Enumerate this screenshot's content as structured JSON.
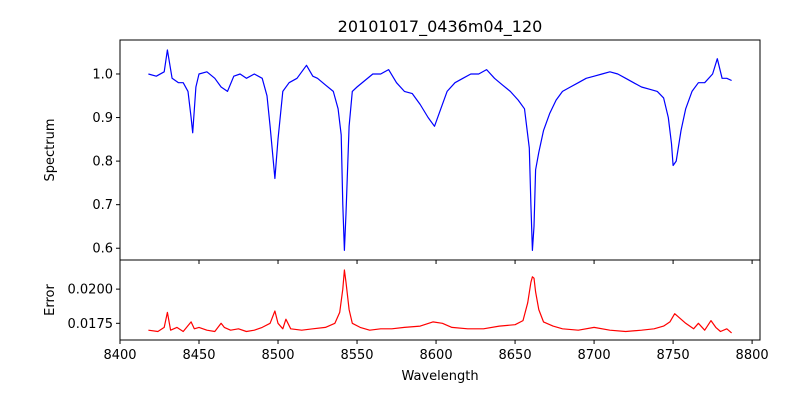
{
  "chart_data": [
    {
      "type": "line",
      "title": "20101017_0436m04_120",
      "ylabel": "Spectrum",
      "xlabel": "",
      "xlim": [
        8400,
        8805
      ],
      "ylim": [
        0.573,
        1.078
      ],
      "x_ticks": [
        8400,
        8450,
        8500,
        8550,
        8600,
        8650,
        8700,
        8750,
        8800
      ],
      "y_ticks": [
        0.6,
        0.7,
        0.8,
        0.9,
        1.0
      ],
      "y_tick_labels": [
        "0.6",
        "0.7",
        "0.8",
        "0.9",
        "1.0"
      ],
      "grid": false,
      "color": "#0000ff",
      "series": [
        {
          "x": [
            8418,
            8423,
            8428,
            8430,
            8433,
            8437,
            8440,
            8443,
            8445,
            8446,
            8448,
            8450,
            8455,
            8460,
            8464,
            8468,
            8472,
            8476,
            8480,
            8485,
            8490,
            8493,
            8495,
            8497,
            8498,
            8500,
            8503,
            8507,
            8512,
            8518,
            8522,
            8525,
            8530,
            8535,
            8538,
            8540,
            8541,
            8542,
            8543,
            8545,
            8547,
            8550,
            8555,
            8560,
            8565,
            8570,
            8575,
            8580,
            8585,
            8590,
            8595,
            8599,
            8603,
            8607,
            8612,
            8617,
            8622,
            8627,
            8632,
            8637,
            8642,
            8647,
            8652,
            8656,
            8659,
            8660,
            8661,
            8662,
            8663,
            8665,
            8668,
            8672,
            8676,
            8680,
            8685,
            8690,
            8695,
            8700,
            8705,
            8710,
            8715,
            8720,
            8725,
            8730,
            8735,
            8740,
            8744,
            8747,
            8749,
            8750,
            8752,
            8755,
            8758,
            8762,
            8766,
            8770,
            8775,
            8778,
            8781,
            8784,
            8787
          ],
          "y": [
            1.0,
            0.995,
            1.005,
            1.055,
            0.99,
            0.98,
            0.98,
            0.96,
            0.9,
            0.865,
            0.97,
            1.0,
            1.005,
            0.99,
            0.97,
            0.96,
            0.995,
            1.0,
            0.99,
            1.0,
            0.99,
            0.95,
            0.88,
            0.8,
            0.76,
            0.85,
            0.96,
            0.98,
            0.99,
            1.02,
            0.995,
            0.99,
            0.975,
            0.96,
            0.92,
            0.86,
            0.7,
            0.595,
            0.68,
            0.88,
            0.96,
            0.97,
            0.985,
            1.0,
            1.0,
            1.01,
            0.98,
            0.96,
            0.955,
            0.93,
            0.9,
            0.88,
            0.92,
            0.96,
            0.98,
            0.99,
            1.0,
            1.0,
            1.01,
            0.99,
            0.975,
            0.96,
            0.94,
            0.92,
            0.83,
            0.7,
            0.595,
            0.65,
            0.78,
            0.82,
            0.87,
            0.91,
            0.94,
            0.96,
            0.97,
            0.98,
            0.99,
            0.995,
            1.0,
            1.005,
            1.0,
            0.99,
            0.98,
            0.97,
            0.965,
            0.96,
            0.945,
            0.9,
            0.84,
            0.79,
            0.8,
            0.87,
            0.92,
            0.96,
            0.98,
            0.98,
            1.0,
            1.035,
            0.99,
            0.99,
            0.985
          ]
        }
      ]
    },
    {
      "type": "line",
      "title": "",
      "ylabel": "Error",
      "xlabel": "Wavelength",
      "xlim": [
        8400,
        8805
      ],
      "ylim": [
        0.01628,
        0.02213
      ],
      "x_ticks": [
        8400,
        8450,
        8500,
        8550,
        8600,
        8650,
        8700,
        8750,
        8800
      ],
      "x_tick_labels": [
        "8400",
        "8450",
        "8500",
        "8550",
        "8600",
        "8650",
        "8700",
        "8750",
        "8800"
      ],
      "y_ticks": [
        0.0175,
        0.02
      ],
      "y_tick_labels": [
        "0.0175",
        "0.0200"
      ],
      "grid": false,
      "color": "#ff0000",
      "series": [
        {
          "x": [
            8418,
            8424,
            8428,
            8430,
            8432,
            8436,
            8440,
            8445,
            8447,
            8450,
            8455,
            8460,
            8464,
            8466,
            8470,
            8475,
            8480,
            8485,
            8490,
            8495,
            8498,
            8500,
            8503,
            8505,
            8508,
            8515,
            8522,
            8530,
            8536,
            8539,
            8541,
            8542,
            8543,
            8545,
            8547,
            8552,
            8558,
            8565,
            8572,
            8580,
            8590,
            8598,
            8604,
            8610,
            8620,
            8630,
            8640,
            8650,
            8655,
            8658,
            8660,
            8661,
            8662,
            8663,
            8665,
            8668,
            8674,
            8680,
            8690,
            8700,
            8710,
            8720,
            8730,
            8738,
            8744,
            8748,
            8751,
            8755,
            8758,
            8763,
            8766,
            8770,
            8774,
            8777,
            8780,
            8784,
            8787
          ],
          "y": [
            0.017,
            0.0169,
            0.0172,
            0.0183,
            0.017,
            0.0172,
            0.0169,
            0.0176,
            0.0171,
            0.0172,
            0.017,
            0.0169,
            0.0175,
            0.0172,
            0.017,
            0.0171,
            0.0169,
            0.017,
            0.0172,
            0.0175,
            0.0184,
            0.0175,
            0.0171,
            0.0178,
            0.0171,
            0.017,
            0.0171,
            0.0172,
            0.0175,
            0.0183,
            0.02,
            0.0214,
            0.0205,
            0.0185,
            0.0175,
            0.0172,
            0.017,
            0.0171,
            0.0171,
            0.0172,
            0.0173,
            0.0176,
            0.0175,
            0.0172,
            0.0171,
            0.0171,
            0.0173,
            0.0174,
            0.0177,
            0.019,
            0.0205,
            0.0209,
            0.0208,
            0.0198,
            0.0185,
            0.0176,
            0.0173,
            0.0171,
            0.017,
            0.0172,
            0.017,
            0.0169,
            0.017,
            0.0171,
            0.0173,
            0.0176,
            0.0182,
            0.0178,
            0.0175,
            0.0171,
            0.0175,
            0.017,
            0.0177,
            0.0172,
            0.0169,
            0.0171,
            0.0168
          ]
        }
      ]
    }
  ]
}
